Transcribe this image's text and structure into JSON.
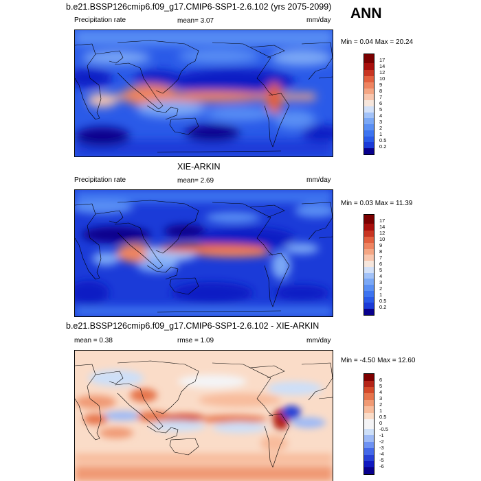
{
  "season": "ANN",
  "panels": [
    {
      "title": "b.e21.BSSP126cmip6.f09_g17.CMIP6-SSP1-2.6.102 (yrs 2075-2099)",
      "left_label": "Precipitation rate",
      "mid_label": "mean=   3.07",
      "right_label": "mm/day",
      "minmax": "Min =   0.04 Max =  20.24",
      "colorbar_labels": [
        "17",
        "14",
        "12",
        "10",
        "9",
        "8",
        "7",
        "6",
        "5",
        "4",
        "3",
        "2",
        "1",
        "0.5",
        "0.2"
      ]
    },
    {
      "title": "XIE-ARKIN",
      "left_label": "Precipitation rate",
      "mid_label": "mean=   2.69",
      "right_label": "mm/day",
      "minmax": "Min =   0.03 Max =  11.39",
      "colorbar_labels": [
        "17",
        "14",
        "12",
        "10",
        "9",
        "8",
        "7",
        "6",
        "5",
        "4",
        "3",
        "2",
        "1",
        "0.5",
        "0.2"
      ]
    },
    {
      "title": "b.e21.BSSP126cmip6.f09_g17.CMIP6-SSP1-2.6.102 - XIE-ARKIN",
      "left_label": "mean =   0.38",
      "mid_label": "rmse =   1.09",
      "right_label": "mm/day",
      "minmax": "Min =  -4.50 Max =  12.60",
      "colorbar_labels": [
        "6",
        "5",
        "4",
        "3",
        "2",
        "1",
        "0.5",
        "0",
        "-0.5",
        "-1",
        "-2",
        "-3",
        "-4",
        "-5",
        "-6"
      ]
    }
  ],
  "colors": {
    "precip_scale": [
      "#08008c",
      "#0b1cc4",
      "#1b3bd8",
      "#2a5ae8",
      "#3d74f0",
      "#5a8ff4",
      "#7ba8f6",
      "#a2c2f8",
      "#d2e0f8",
      "#f6e6dc",
      "#f8c6ae",
      "#f4a684",
      "#ee8461",
      "#e2603f",
      "#c83522",
      "#a80f0c",
      "#7a0000"
    ],
    "diff_scale": [
      "#08008c",
      "#1019c0",
      "#2740d6",
      "#4468e8",
      "#6e92f2",
      "#9ebaf6",
      "#cddff8",
      "#f4f4f6",
      "#fadcc8",
      "#f8bc9c",
      "#f09a74",
      "#e6744c",
      "#d44a2a",
      "#b42418",
      "#7e0000"
    ]
  }
}
